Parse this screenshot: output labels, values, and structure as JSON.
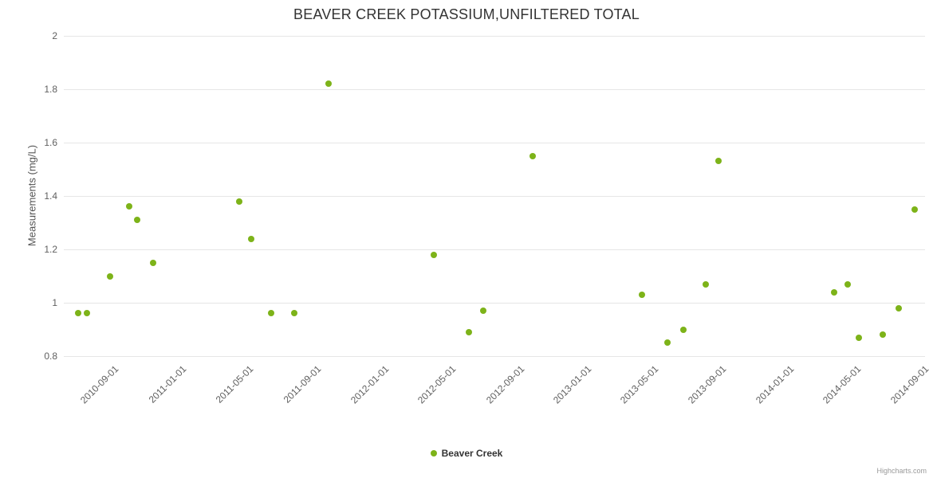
{
  "credits": "Highcharts.com",
  "chart_data": {
    "type": "scatter",
    "title": "BEAVER CREEK POTASSIUM,UNFILTERED TOTAL",
    "xlabel": "",
    "ylabel": "Measurements (mg/L)",
    "ylim": [
      0.8,
      2
    ],
    "yticks": [
      0.8,
      1,
      1.2,
      1.4,
      1.6,
      1.8,
      2
    ],
    "xticks": [
      "2010-09-01",
      "2011-01-01",
      "2011-05-01",
      "2011-09-01",
      "2012-01-01",
      "2012-05-01",
      "2012-09-01",
      "2013-01-01",
      "2013-05-01",
      "2013-09-01",
      "2014-01-01",
      "2014-05-01",
      "2014-09-01"
    ],
    "x_range": [
      "2010-06-02",
      "2014-09-02"
    ],
    "grid": "horizontal-only",
    "legend_position": "bottom-center",
    "colors": {
      "point": "#7db319",
      "grid": "#e6e6e6",
      "axis_label": "#606060",
      "title_text": "#333333"
    },
    "series": [
      {
        "name": "Beaver Creek",
        "color": "#7db319",
        "points": [
          {
            "date": "2010-06-28",
            "value": 0.96
          },
          {
            "date": "2010-07-14",
            "value": 0.96
          },
          {
            "date": "2010-08-24",
            "value": 1.1
          },
          {
            "date": "2010-09-28",
            "value": 1.36
          },
          {
            "date": "2010-10-12",
            "value": 1.31
          },
          {
            "date": "2010-11-10",
            "value": 1.15
          },
          {
            "date": "2011-04-15",
            "value": 1.38
          },
          {
            "date": "2011-05-06",
            "value": 1.24
          },
          {
            "date": "2011-06-11",
            "value": 0.96
          },
          {
            "date": "2011-07-23",
            "value": 0.96
          },
          {
            "date": "2011-09-22",
            "value": 1.82
          },
          {
            "date": "2012-03-30",
            "value": 1.18
          },
          {
            "date": "2012-06-01",
            "value": 0.89
          },
          {
            "date": "2012-06-27",
            "value": 0.97
          },
          {
            "date": "2012-09-25",
            "value": 1.55
          },
          {
            "date": "2013-04-10",
            "value": 1.03
          },
          {
            "date": "2013-05-25",
            "value": 0.85
          },
          {
            "date": "2013-06-24",
            "value": 0.9
          },
          {
            "date": "2013-08-03",
            "value": 1.07
          },
          {
            "date": "2013-08-25",
            "value": 1.53
          },
          {
            "date": "2014-03-22",
            "value": 1.04
          },
          {
            "date": "2014-04-15",
            "value": 1.07
          },
          {
            "date": "2014-05-05",
            "value": 0.87
          },
          {
            "date": "2014-06-18",
            "value": 0.88
          },
          {
            "date": "2014-07-17",
            "value": 0.98
          },
          {
            "date": "2014-08-15",
            "value": 1.35
          }
        ]
      }
    ]
  }
}
